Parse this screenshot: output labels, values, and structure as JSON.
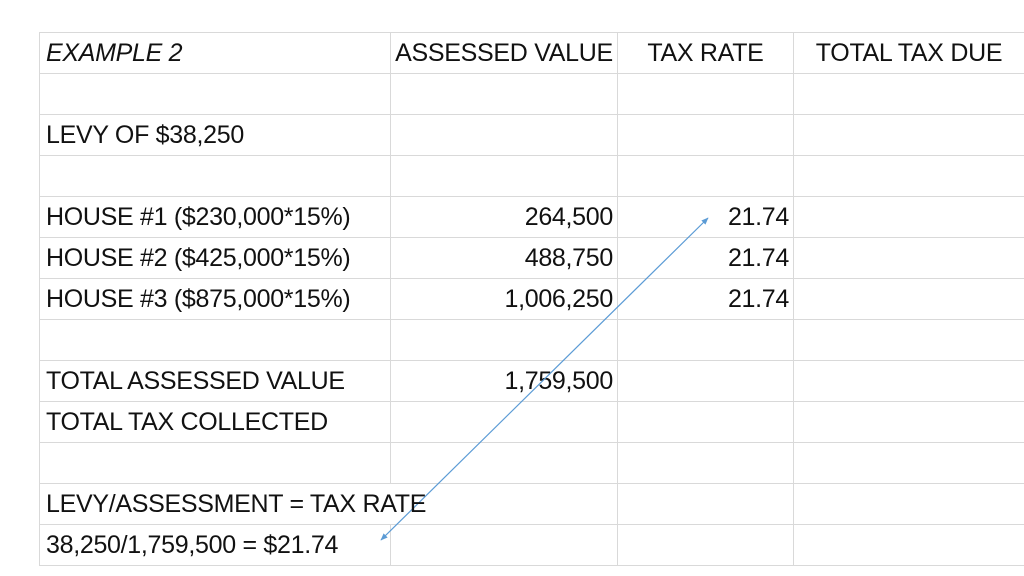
{
  "header": {
    "col1": "EXAMPLE 2",
    "col2": "ASSESSED VALUE",
    "col3": "TAX RATE",
    "col4": "TOTAL TAX DUE"
  },
  "levy_label": "LEVY OF $38,250",
  "houses": [
    {
      "label": "HOUSE #1 ($230,000*15%)",
      "assessed": "264,500",
      "rate": "21.74"
    },
    {
      "label": "HOUSE #2 ($425,000*15%)",
      "assessed": "488,750",
      "rate": "21.74"
    },
    {
      "label": "HOUSE #3 ($875,000*15%)",
      "assessed": "1,006,250",
      "rate": "21.74"
    }
  ],
  "totals": {
    "assessed_label": "TOTAL ASSESSED VALUE",
    "assessed_value": "1,759,500",
    "collected_label": "TOTAL TAX COLLECTED"
  },
  "formula": {
    "definition": "LEVY/ASSESSMENT = TAX RATE",
    "calculation": "38,250/1,759,500 = $21.74"
  },
  "colors": {
    "grid": "#d9d9d9",
    "arrow": "#5b9bd5",
    "text": "#111111"
  }
}
